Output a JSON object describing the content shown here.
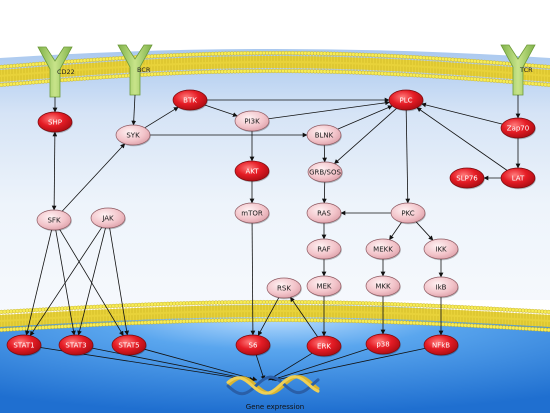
{
  "receptors": {
    "cd22": "CD22",
    "bcr": "BCR",
    "tcr": "TCR"
  },
  "nodes": {
    "shp": "SHP",
    "btk": "BTK",
    "plc": "PLC",
    "zap70": "Zap70",
    "syk": "SYK",
    "pi3k": "PI3K",
    "blnk": "BLNK",
    "akt": "AKT",
    "grb_sos": "GRB/SOS",
    "slp76": "SLP76",
    "lat": "LAT",
    "sfk": "SFK",
    "jak": "JAK",
    "mtor": "mTOR",
    "ras": "RAS",
    "pkc": "PKC",
    "raf": "RAF",
    "mekk": "MEKK",
    "ikk": "IKK",
    "rsk": "RSK",
    "mek": "MEK",
    "mkk": "MKK",
    "ikb": "IkB",
    "stat1": "STAT1",
    "stat3": "STAT3",
    "stat5": "STAT5",
    "s6": "S6",
    "erk": "ERK",
    "p38": "p38",
    "nfkb": "NFkB"
  },
  "gene_expression": "Gene expression",
  "colors": {
    "membrane_head": "#f1e44a",
    "membrane_tail": "#d9c52a",
    "cytoplasm_top": "#dfe9f7",
    "nucleus": "#3a86de",
    "node_red": "#e8202a",
    "node_pink": "#f3c6cc",
    "receptor": "#a8d060",
    "dna_gold": "#d8b432",
    "dna_blue": "#2a5fa8"
  }
}
